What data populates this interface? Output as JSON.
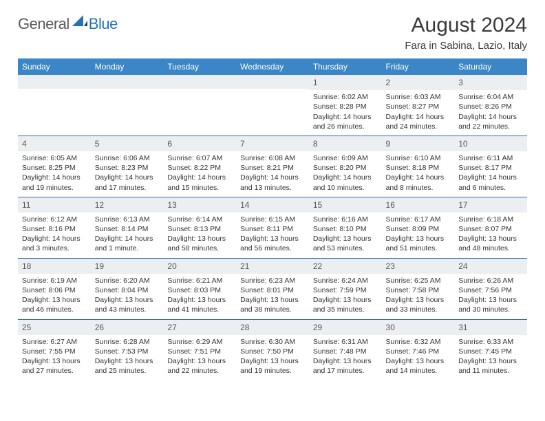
{
  "brand": {
    "part1": "General",
    "part2": "Blue"
  },
  "title": "August 2024",
  "location": "Fara in Sabina, Lazio, Italy",
  "headers": [
    "Sunday",
    "Monday",
    "Tuesday",
    "Wednesday",
    "Thursday",
    "Friday",
    "Saturday"
  ],
  "colors": {
    "header_bg": "#3b86c6",
    "header_text": "#ffffff",
    "daynum_bg": "#eceff1",
    "row_border": "#2f6aa3",
    "logo_blue": "#2471b8",
    "logo_gray": "#5a5a5a",
    "body_text": "#333333"
  },
  "weeks": [
    [
      {
        "n": "",
        "r": "",
        "s": "",
        "d": ""
      },
      {
        "n": "",
        "r": "",
        "s": "",
        "d": ""
      },
      {
        "n": "",
        "r": "",
        "s": "",
        "d": ""
      },
      {
        "n": "",
        "r": "",
        "s": "",
        "d": ""
      },
      {
        "n": "1",
        "r": "Sunrise: 6:02 AM",
        "s": "Sunset: 8:28 PM",
        "d": "Daylight: 14 hours and 26 minutes."
      },
      {
        "n": "2",
        "r": "Sunrise: 6:03 AM",
        "s": "Sunset: 8:27 PM",
        "d": "Daylight: 14 hours and 24 minutes."
      },
      {
        "n": "3",
        "r": "Sunrise: 6:04 AM",
        "s": "Sunset: 8:26 PM",
        "d": "Daylight: 14 hours and 22 minutes."
      }
    ],
    [
      {
        "n": "4",
        "r": "Sunrise: 6:05 AM",
        "s": "Sunset: 8:25 PM",
        "d": "Daylight: 14 hours and 19 minutes."
      },
      {
        "n": "5",
        "r": "Sunrise: 6:06 AM",
        "s": "Sunset: 8:23 PM",
        "d": "Daylight: 14 hours and 17 minutes."
      },
      {
        "n": "6",
        "r": "Sunrise: 6:07 AM",
        "s": "Sunset: 8:22 PM",
        "d": "Daylight: 14 hours and 15 minutes."
      },
      {
        "n": "7",
        "r": "Sunrise: 6:08 AM",
        "s": "Sunset: 8:21 PM",
        "d": "Daylight: 14 hours and 13 minutes."
      },
      {
        "n": "8",
        "r": "Sunrise: 6:09 AM",
        "s": "Sunset: 8:20 PM",
        "d": "Daylight: 14 hours and 10 minutes."
      },
      {
        "n": "9",
        "r": "Sunrise: 6:10 AM",
        "s": "Sunset: 8:18 PM",
        "d": "Daylight: 14 hours and 8 minutes."
      },
      {
        "n": "10",
        "r": "Sunrise: 6:11 AM",
        "s": "Sunset: 8:17 PM",
        "d": "Daylight: 14 hours and 6 minutes."
      }
    ],
    [
      {
        "n": "11",
        "r": "Sunrise: 6:12 AM",
        "s": "Sunset: 8:16 PM",
        "d": "Daylight: 14 hours and 3 minutes."
      },
      {
        "n": "12",
        "r": "Sunrise: 6:13 AM",
        "s": "Sunset: 8:14 PM",
        "d": "Daylight: 14 hours and 1 minute."
      },
      {
        "n": "13",
        "r": "Sunrise: 6:14 AM",
        "s": "Sunset: 8:13 PM",
        "d": "Daylight: 13 hours and 58 minutes."
      },
      {
        "n": "14",
        "r": "Sunrise: 6:15 AM",
        "s": "Sunset: 8:11 PM",
        "d": "Daylight: 13 hours and 56 minutes."
      },
      {
        "n": "15",
        "r": "Sunrise: 6:16 AM",
        "s": "Sunset: 8:10 PM",
        "d": "Daylight: 13 hours and 53 minutes."
      },
      {
        "n": "16",
        "r": "Sunrise: 6:17 AM",
        "s": "Sunset: 8:09 PM",
        "d": "Daylight: 13 hours and 51 minutes."
      },
      {
        "n": "17",
        "r": "Sunrise: 6:18 AM",
        "s": "Sunset: 8:07 PM",
        "d": "Daylight: 13 hours and 48 minutes."
      }
    ],
    [
      {
        "n": "18",
        "r": "Sunrise: 6:19 AM",
        "s": "Sunset: 8:06 PM",
        "d": "Daylight: 13 hours and 46 minutes."
      },
      {
        "n": "19",
        "r": "Sunrise: 6:20 AM",
        "s": "Sunset: 8:04 PM",
        "d": "Daylight: 13 hours and 43 minutes."
      },
      {
        "n": "20",
        "r": "Sunrise: 6:21 AM",
        "s": "Sunset: 8:03 PM",
        "d": "Daylight: 13 hours and 41 minutes."
      },
      {
        "n": "21",
        "r": "Sunrise: 6:23 AM",
        "s": "Sunset: 8:01 PM",
        "d": "Daylight: 13 hours and 38 minutes."
      },
      {
        "n": "22",
        "r": "Sunrise: 6:24 AM",
        "s": "Sunset: 7:59 PM",
        "d": "Daylight: 13 hours and 35 minutes."
      },
      {
        "n": "23",
        "r": "Sunrise: 6:25 AM",
        "s": "Sunset: 7:58 PM",
        "d": "Daylight: 13 hours and 33 minutes."
      },
      {
        "n": "24",
        "r": "Sunrise: 6:26 AM",
        "s": "Sunset: 7:56 PM",
        "d": "Daylight: 13 hours and 30 minutes."
      }
    ],
    [
      {
        "n": "25",
        "r": "Sunrise: 6:27 AM",
        "s": "Sunset: 7:55 PM",
        "d": "Daylight: 13 hours and 27 minutes."
      },
      {
        "n": "26",
        "r": "Sunrise: 6:28 AM",
        "s": "Sunset: 7:53 PM",
        "d": "Daylight: 13 hours and 25 minutes."
      },
      {
        "n": "27",
        "r": "Sunrise: 6:29 AM",
        "s": "Sunset: 7:51 PM",
        "d": "Daylight: 13 hours and 22 minutes."
      },
      {
        "n": "28",
        "r": "Sunrise: 6:30 AM",
        "s": "Sunset: 7:50 PM",
        "d": "Daylight: 13 hours and 19 minutes."
      },
      {
        "n": "29",
        "r": "Sunrise: 6:31 AM",
        "s": "Sunset: 7:48 PM",
        "d": "Daylight: 13 hours and 17 minutes."
      },
      {
        "n": "30",
        "r": "Sunrise: 6:32 AM",
        "s": "Sunset: 7:46 PM",
        "d": "Daylight: 13 hours and 14 minutes."
      },
      {
        "n": "31",
        "r": "Sunrise: 6:33 AM",
        "s": "Sunset: 7:45 PM",
        "d": "Daylight: 13 hours and 11 minutes."
      }
    ]
  ]
}
